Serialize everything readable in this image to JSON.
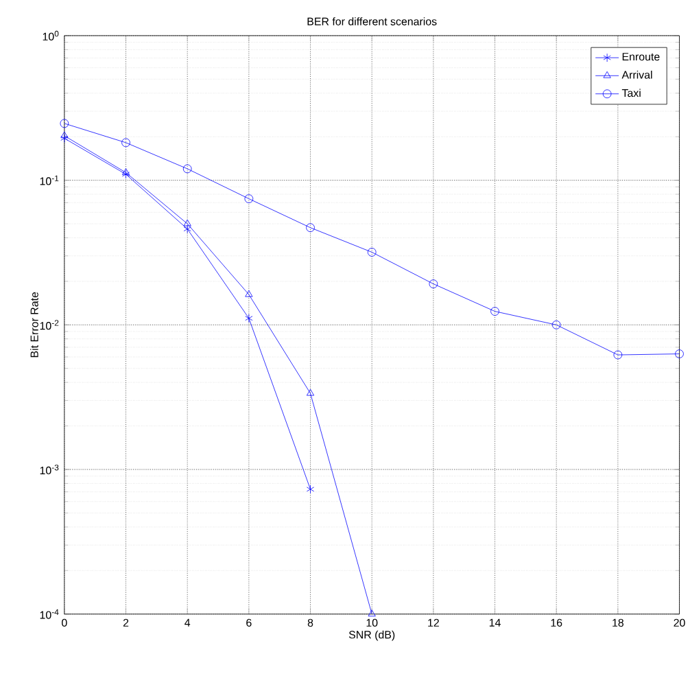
{
  "chart_data": {
    "type": "line",
    "title": "BER for different scenarios",
    "xlabel": "SNR (dB)",
    "ylabel": "Bit Error Rate",
    "log": "y",
    "grid": true,
    "legend": "top right",
    "line_style": "solid",
    "xlim": [
      0,
      20
    ],
    "xticks": [
      0,
      2,
      4,
      6,
      8,
      10,
      12,
      14,
      16,
      18,
      20
    ],
    "ylim": [
      0.0001,
      1
    ],
    "yticks": [
      {
        "value": 0.0001,
        "label": "10$^{-4}$"
      },
      {
        "value": 0.001,
        "label": "10$^{-3}$"
      },
      {
        "value": 0.01,
        "label": "10$^{-2}$"
      },
      {
        "value": 0.1,
        "label": "10$^{-1}$"
      },
      {
        "value": 1,
        "label": "10$^{0}$"
      }
    ],
    "series": [
      {
        "name": "Enroute",
        "color": "#0000ff",
        "marker": "cross",
        "x": [
          0,
          2,
          4,
          6,
          8
        ],
        "values": [
          0.195,
          0.11,
          0.046,
          0.0111,
          0.00073
        ]
      },
      {
        "name": "Arrival",
        "color": "#0000ff",
        "marker": "triangle",
        "x": [
          0,
          2,
          4,
          6,
          8,
          10
        ],
        "values": [
          0.203,
          0.113,
          0.05,
          0.0162,
          0.00336,
          0.0001
        ]
      },
      {
        "name": "Taxi",
        "color": "#0000ff",
        "marker": "circle",
        "x": [
          0,
          2,
          4,
          6,
          8,
          10,
          12,
          14,
          16,
          18,
          20
        ],
        "values": [
          0.247,
          0.182,
          0.12,
          0.0745,
          0.047,
          0.0318,
          0.0192,
          0.0124,
          0.01,
          0.0062,
          0.0063
        ]
      }
    ]
  }
}
